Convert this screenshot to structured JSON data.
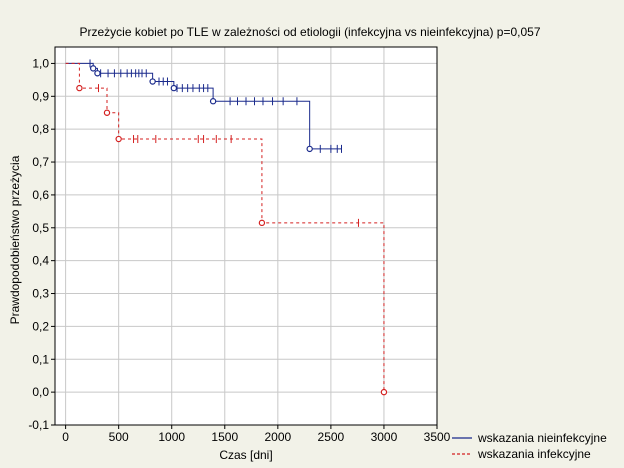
{
  "chart_data": {
    "type": "line",
    "title": "Przeżycie kobiet po TLE w zależności od etiologii (infekcyjna vs nieinfekcyjna) p=0,057",
    "xlabel": "Czas [dni]",
    "ylabel": "Prawdopodobieństwo przeżycia",
    "xlim": [
      -100,
      3500
    ],
    "ylim": [
      -0.1,
      1.05
    ],
    "x_ticks": [
      0,
      500,
      1000,
      1500,
      2000,
      2500,
      3000,
      3500
    ],
    "x_tick_labels": [
      "0",
      "500",
      "1000",
      "1500",
      "2000",
      "2500",
      "3000",
      "3500"
    ],
    "y_ticks": [
      -0.1,
      0.0,
      0.1,
      0.2,
      0.3,
      0.4,
      0.5,
      0.6,
      0.7,
      0.8,
      0.9,
      1.0
    ],
    "y_tick_labels": [
      "-0,1",
      "0,0",
      "0,1",
      "0,2",
      "0,3",
      "0,4",
      "0,5",
      "0,6",
      "0,7",
      "0,8",
      "0,9",
      "1,0"
    ],
    "grid": true,
    "legend_position": "bottom-right",
    "series": [
      {
        "name": "wskazania nieinfekcyjne",
        "color": "#1a2a8c",
        "style": "solid",
        "steps": [
          [
            0,
            1.0
          ],
          [
            260,
            0.985
          ],
          [
            300,
            0.97
          ],
          [
            820,
            0.945
          ],
          [
            1020,
            0.925
          ],
          [
            1390,
            0.885
          ],
          [
            2300,
            0.74
          ],
          [
            2600,
            0.74
          ]
        ],
        "events": [
          [
            260,
            0.985
          ],
          [
            300,
            0.97
          ],
          [
            820,
            0.945
          ],
          [
            1020,
            0.925
          ],
          [
            1390,
            0.885
          ],
          [
            2300,
            0.74
          ]
        ],
        "censored": [
          [
            230,
            1.0
          ],
          [
            330,
            0.97
          ],
          [
            400,
            0.97
          ],
          [
            460,
            0.97
          ],
          [
            520,
            0.97
          ],
          [
            580,
            0.97
          ],
          [
            620,
            0.97
          ],
          [
            660,
            0.97
          ],
          [
            690,
            0.97
          ],
          [
            720,
            0.97
          ],
          [
            760,
            0.97
          ],
          [
            880,
            0.945
          ],
          [
            920,
            0.945
          ],
          [
            960,
            0.945
          ],
          [
            1050,
            0.925
          ],
          [
            1100,
            0.925
          ],
          [
            1150,
            0.925
          ],
          [
            1200,
            0.925
          ],
          [
            1260,
            0.925
          ],
          [
            1300,
            0.925
          ],
          [
            1340,
            0.925
          ],
          [
            1550,
            0.885
          ],
          [
            1620,
            0.885
          ],
          [
            1700,
            0.885
          ],
          [
            1780,
            0.885
          ],
          [
            1860,
            0.885
          ],
          [
            1950,
            0.885
          ],
          [
            2050,
            0.885
          ],
          [
            2180,
            0.885
          ],
          [
            2400,
            0.74
          ],
          [
            2500,
            0.74
          ],
          [
            2560,
            0.74
          ],
          [
            2600,
            0.74
          ]
        ]
      },
      {
        "name": "wskazania infekcyjne",
        "color": "#d42020",
        "style": "dashed",
        "steps": [
          [
            0,
            1.0
          ],
          [
            130,
            0.925
          ],
          [
            390,
            0.85
          ],
          [
            500,
            0.77
          ],
          [
            1850,
            0.515
          ],
          [
            3000,
            0.0
          ]
        ],
        "events": [
          [
            130,
            0.925
          ],
          [
            390,
            0.85
          ],
          [
            500,
            0.77
          ],
          [
            1850,
            0.515
          ],
          [
            3000,
            0.0
          ]
        ],
        "censored": [
          [
            310,
            0.925
          ],
          [
            640,
            0.77
          ],
          [
            680,
            0.77
          ],
          [
            850,
            0.77
          ],
          [
            1250,
            0.77
          ],
          [
            1300,
            0.77
          ],
          [
            1420,
            0.77
          ],
          [
            1560,
            0.77
          ],
          [
            2760,
            0.515
          ]
        ]
      }
    ]
  }
}
